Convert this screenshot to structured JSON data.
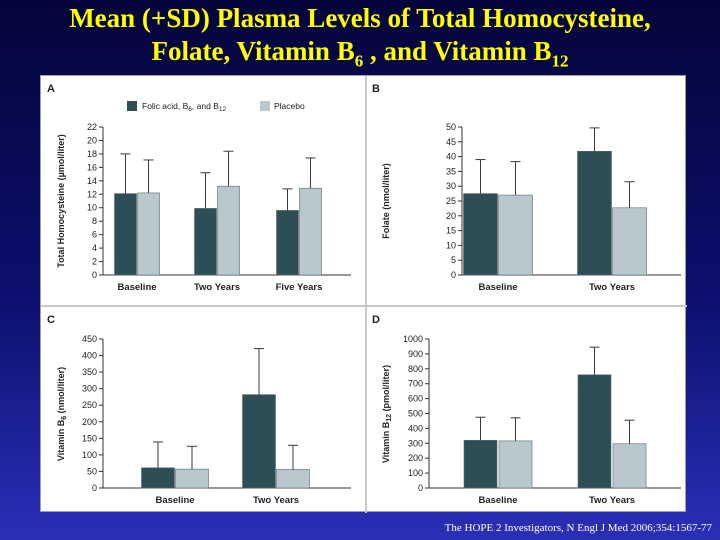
{
  "title": {
    "line1": "Mean (+SD) Plasma Levels of Total Homocysteine,",
    "line2_a": "Folate, Vitamin B",
    "line2_sub1": "6",
    "line2_b": " , and Vitamin B",
    "line2_sub2": "12"
  },
  "citation": "The HOPE 2 Investigators, N Engl J Med 2006;354:1567-77",
  "legend": {
    "series1_a": "Folic acid, B",
    "series1_sub1": "6",
    "series1_b": ", and B",
    "series1_sub2": "12",
    "series2": "Placebo"
  },
  "colors": {
    "treatment": "#2e4e56",
    "placebo": "#b8c8cc",
    "error": "#3a3a3a"
  },
  "chart_data": [
    {
      "panel": "A",
      "type": "bar",
      "categories": [
        "Baseline",
        "Two Years",
        "Five Years"
      ],
      "series": [
        {
          "name": "Folic acid, B6, and B12",
          "values": [
            12.1,
            9.9,
            9.6
          ],
          "sd": [
            5.9,
            5.3,
            3.2
          ]
        },
        {
          "name": "Placebo",
          "values": [
            12.2,
            13.2,
            12.9
          ],
          "sd": [
            4.9,
            5.2,
            4.5
          ]
        }
      ],
      "ylabel": "Total Homocysteine (µmol/liter)",
      "ylim": [
        0,
        22
      ],
      "yticks": [
        0,
        2,
        4,
        6,
        8,
        10,
        12,
        14,
        16,
        18,
        20,
        22
      ]
    },
    {
      "panel": "B",
      "type": "bar",
      "categories": [
        "Baseline",
        "Two Years"
      ],
      "series": [
        {
          "name": "Folic acid, B6, and B12",
          "values": [
            27.5,
            41.8
          ],
          "sd": [
            11.5,
            7.9
          ]
        },
        {
          "name": "Placebo",
          "values": [
            27.0,
            22.7
          ],
          "sd": [
            11.3,
            8.8
          ]
        }
      ],
      "ylabel": "Folate (nmol/liter)",
      "ylim": [
        0,
        50
      ],
      "yticks": [
        0,
        5,
        10,
        15,
        20,
        25,
        30,
        35,
        40,
        45,
        50
      ]
    },
    {
      "panel": "C",
      "type": "bar",
      "categories": [
        "Baseline",
        "Two Years"
      ],
      "series": [
        {
          "name": "Folic acid, B6, and B12",
          "values": [
            61,
            282
          ],
          "sd": [
            78,
            139
          ]
        },
        {
          "name": "Placebo",
          "values": [
            57,
            56
          ],
          "sd": [
            69,
            73
          ]
        }
      ],
      "ylabel_a": "Vitamin B",
      "ylabel_sub": "6",
      "ylabel_b": " (nmol/liter)",
      "ylim": [
        0,
        450
      ],
      "yticks": [
        0,
        50,
        100,
        150,
        200,
        250,
        300,
        350,
        400,
        450
      ]
    },
    {
      "panel": "D",
      "type": "bar",
      "categories": [
        "Baseline",
        "Two Years"
      ],
      "series": [
        {
          "name": "Folic acid, B6, and B12",
          "values": [
            320,
            760
          ],
          "sd": [
            155,
            185
          ]
        },
        {
          "name": "Placebo",
          "values": [
            316,
            297
          ],
          "sd": [
            155,
            158
          ]
        }
      ],
      "ylabel_a": "Vitamin B",
      "ylabel_sub": "12",
      "ylabel_b": " (pmol/liter)",
      "ylim": [
        0,
        1000
      ],
      "yticks": [
        0,
        100,
        200,
        300,
        400,
        500,
        600,
        700,
        800,
        900,
        1000
      ]
    }
  ]
}
